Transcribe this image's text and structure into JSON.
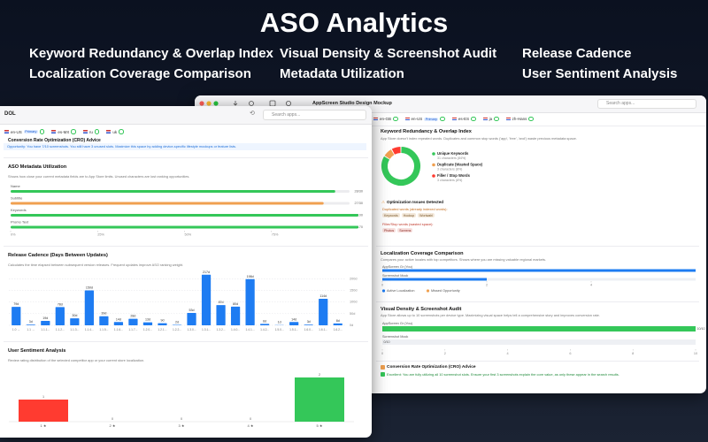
{
  "header": {
    "title": "ASO Analytics",
    "features": [
      "Keyword Redundancy & Overlap Index",
      "Visual Density & Screenshot Audit",
      "Release Cadence",
      "Localization Coverage Comparison",
      "Metadata Utilization",
      "User Sentiment Analysis"
    ]
  },
  "left_window": {
    "title": "DOL",
    "search": "Search apps...",
    "locales": [
      {
        "code": "en-US",
        "badge": "Primary"
      },
      {
        "code": "es-MX"
      },
      {
        "code": "ru"
      },
      {
        "code": "uk"
      }
    ],
    "cro": {
      "title": "Conversion Rate Optimization (CRO) Advice",
      "text": "Opportunity: You have 7/10 screenshots. You still have 3 unused slots. Maximize this space by adding device-specific lifestyle mockups or feature lists."
    },
    "metadata": {
      "title": "ASO Metadata Utilization",
      "description": "Shows how close your current metadata fields are to App Store limits. Unused characters are lost ranking opportunities.",
      "xlim": [
        0,
        1
      ],
      "xticks": [
        {
          "value": 0,
          "label": "0%"
        },
        {
          "value": 0.25,
          "label": "25%"
        },
        {
          "value": 0.5,
          "label": "50%"
        },
        {
          "value": 0.75,
          "label": "75%"
        }
      ],
      "fields": [
        {
          "name": "Name",
          "value": 28,
          "max": 30,
          "value_label": "28/30",
          "color": "#34c759"
        },
        {
          "name": "Subtitle",
          "value": 27,
          "max": 30,
          "value_label": "27/30",
          "color": "#f0a050"
        },
        {
          "name": "Keywords",
          "value": 100,
          "max": 100,
          "value_label": "100/100",
          "color": "#34c759"
        },
        {
          "name": "Promo Text",
          "value": 170,
          "max": 170,
          "value_label": "170/170",
          "color": "#34c759"
        }
      ]
    },
    "release_cadence": {
      "title": "Release Cadence (Days Between Updates)",
      "description": "Calculates the time elapsed between subsequent version releases. Frequent updates improve ASO ranking weight.",
      "categories": [
        "1.0 →",
        "1.1 →",
        "1.1.1...",
        "1.1.2...",
        "1.1.3...",
        "1.1.4...",
        "1.1.5...",
        "1.1.6...",
        "1.1.7...",
        "1.2.0...",
        "1.2.1...",
        "1.2.2...",
        "1.3.0...",
        "1.3.1...",
        "1.3.2...",
        "1.4.0...",
        "1.4.1...",
        "1.4.2...",
        "1.5.0...",
        "1.5.1...",
        "1.6.0...",
        "1.6.1...",
        "1.6.2..."
      ],
      "values": [
        79,
        3,
        19,
        78,
        30,
        150,
        39,
        14,
        28,
        13,
        9,
        2,
        53,
        217,
        87,
        80,
        198,
        6,
        1,
        14,
        3,
        114,
        8
      ],
      "value_labels": [
        "79d",
        "3d",
        "19d",
        "78d",
        "30d",
        "150d",
        "39d",
        "14d",
        "28d",
        "13d",
        "9d",
        "2d",
        "53d",
        "217d",
        "87d",
        "80d",
        "198d",
        "6d",
        "1d",
        "14d",
        "3d",
        "114d",
        "8d"
      ],
      "color": "#1e7cf2",
      "ylim": [
        0,
        220
      ],
      "yticks": [
        {
          "value": 0,
          "label": "0d"
        },
        {
          "value": 50,
          "label": "50d"
        },
        {
          "value": 100,
          "label": "100d"
        },
        {
          "value": 150,
          "label": "150d"
        },
        {
          "value": 200,
          "label": "200d"
        }
      ]
    },
    "sentiment": {
      "title": "User Sentiment Analysis",
      "description": "Review rating distribution of the selected competitor app or your current store localization.",
      "categories": [
        "1 ★",
        "2 ★",
        "3 ★",
        "4 ★",
        "5 ★"
      ],
      "values": [
        1,
        0,
        0,
        0,
        2
      ],
      "colors": [
        "#ff3b30",
        "#ff9500",
        "#ffcc00",
        "#a3d977",
        "#34c759"
      ],
      "ylim": [
        0,
        2.2
      ]
    }
  },
  "right_window": {
    "title": "AppScreen Studio Design Mockup",
    "search": "Search apps...",
    "locales": [
      {
        "code": "en-GB"
      },
      {
        "code": "en-US",
        "badge": "Primary"
      },
      {
        "code": "es-ES"
      },
      {
        "code": "ja"
      },
      {
        "code": "zh-Hans"
      }
    ],
    "keyword_redundancy": {
      "title": "Keyword Redundancy & Overlap Index",
      "description": "App Store doesn't index repeated words. Duplicates and common stop words ('app', 'free', 'and') waste precious metadata space.",
      "segments": [
        {
          "name": "Unique Keywords",
          "value": 31,
          "detail": "31 characters (84%)",
          "color": "#34c759"
        },
        {
          "name": "Duplicate (Wasted Space)",
          "value": 3,
          "detail": "3 characters (8%)",
          "color": "#f0a050"
        },
        {
          "name": "Filler / Stop Words",
          "value": 3,
          "detail": "3 characters (8%)",
          "color": "#ff3b30"
        }
      ]
    },
    "issues": {
      "title": "Optimization Issues Detected",
      "duplicated_heading": "Duplicated words (already indexed words):",
      "duplicated": [
        "Keywords",
        "Hookup",
        "Wortwahl"
      ],
      "filler_heading": "Filler/Stop words (wasted space):",
      "filler": [
        "Photos",
        "Screens"
      ]
    },
    "localization": {
      "title": "Localization Coverage Comparison",
      "description": "Compares your active locales with top competitors. Shows where you are missing valuable regional markets.",
      "categories": [
        "AppScreen Gr (You)",
        "Screenshot Mock"
      ],
      "series": [
        {
          "name": "Active Localization",
          "color": "#1e7cf2",
          "values": [
            6,
            2
          ]
        },
        {
          "name": "Missed Opportunity",
          "color": "#f0a050",
          "values": [
            0,
            0
          ]
        }
      ],
      "xlim": [
        0,
        6
      ],
      "xticks": [
        0,
        2,
        4
      ]
    },
    "visual_density": {
      "title": "Visual Density & Screenshot Audit",
      "description": "App Store allows up to 10 screenshots per device type. Maximizing visual space helps tell a comprehensive story and improves conversion rate.",
      "categories": [
        "AppScreen Gr (You)",
        "Screenshot Mock"
      ],
      "values": [
        10,
        0
      ],
      "value_labels": [
        "10/10",
        "0/10"
      ],
      "color": "#34c759",
      "xlim": [
        0,
        10
      ],
      "xticks": [
        0,
        2,
        4,
        6,
        8,
        10
      ]
    },
    "cro": {
      "title": "Conversion Rate Optimization (CRO) Advice",
      "text": "Excellent: You are fully utilizing all 10 screenshot slots. Ensure your first 3 screenshots explain the core value, as only these appear in the search results."
    }
  }
}
